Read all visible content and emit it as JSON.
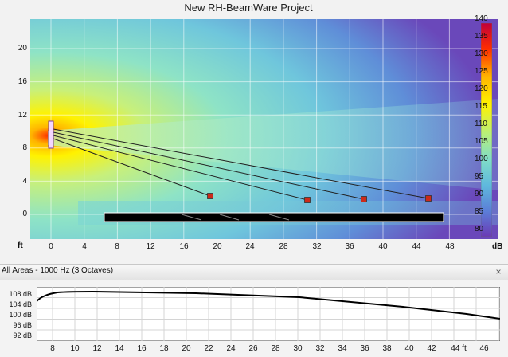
{
  "title": "New RH-BeamWare Project",
  "axis": {
    "y_ticks": [
      "20",
      "16",
      "12",
      "8",
      "4",
      "0"
    ],
    "x_ticks": [
      "0",
      "4",
      "8",
      "12",
      "16",
      "20",
      "24",
      "28",
      "32",
      "36",
      "40",
      "44",
      "48"
    ],
    "x_unit": "ft"
  },
  "colorbar": {
    "ticks": [
      "140",
      "135",
      "130",
      "125",
      "120",
      "115",
      "110",
      "105",
      "100",
      "95",
      "90",
      "85",
      "80"
    ],
    "unit": "dB"
  },
  "panel": {
    "title": "All Areas - 1000 Hz (3 Octaves)",
    "close_label": "×"
  },
  "response": {
    "y_ticks": [
      "108 dB",
      "104 dB",
      "100 dB",
      "96 dB",
      "92 dB"
    ],
    "x_ticks": [
      "8",
      "10",
      "12",
      "14",
      "16",
      "18",
      "20",
      "22",
      "24",
      "26",
      "28",
      "30",
      "32",
      "34",
      "36",
      "38",
      "40",
      "42",
      "44 ft",
      "46"
    ]
  },
  "colors": {
    "plot_background": "#6a48ba",
    "grid": "#ffffff",
    "listener_marker": "#cc2a1a",
    "audience_area": "#000000"
  }
}
